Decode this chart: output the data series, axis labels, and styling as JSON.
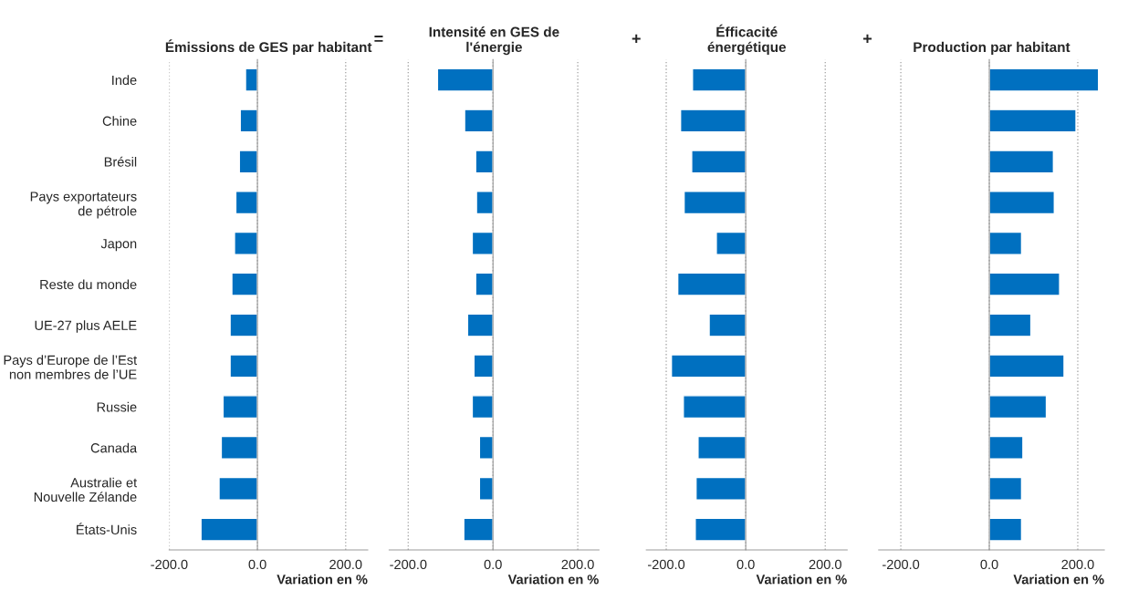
{
  "chart_data": [
    {
      "type": "bar",
      "orientation": "horizontal",
      "title": "Émissions de GES par habitant",
      "xlabel": "Variation en %",
      "categories": [
        "Inde",
        "Chine",
        "Brésil",
        "Pays exportateurs\nde pétrole",
        "Japon",
        "Reste du monde",
        "UE-27 plus AELE",
        "Pays d’Europe de l’Est\nnon membres de l’UE",
        "Russie",
        "Canada",
        "Australie et\nNouvelle Zélande",
        "États-Unis"
      ],
      "series": [
        {
          "color": "#0070c0",
          "values": [
            -27,
            -39,
            -41,
            -49,
            -52,
            -58,
            -62,
            -62,
            -78,
            -82,
            -87,
            -128
          ]
        }
      ],
      "xlim": [
        -200,
        250
      ],
      "xticks": [
        {
          "value": -200,
          "label": "-200.0"
        },
        {
          "value": 0,
          "label": "0.0"
        },
        {
          "value": 200,
          "label": "200.0"
        }
      ],
      "grid": "x"
    },
    {
      "type": "bar",
      "orientation": "horizontal",
      "title": "Intensité en GES de\nl'énergie",
      "xlabel": "Variation en %",
      "annotations": [
        "="
      ],
      "series": [
        {
          "color": "#0070c0",
          "values": [
            -131,
            -67,
            -41,
            -39,
            -49,
            -41,
            -60,
            -45,
            -49,
            -32,
            -32,
            -69
          ]
        }
      ],
      "xlim": [
        -245,
        250
      ],
      "xticks": [
        {
          "value": -200,
          "label": "-200.0"
        },
        {
          "value": 0,
          "label": "0.0"
        },
        {
          "value": 200,
          "label": "200.0"
        }
      ],
      "grid": "x",
      "tick_labels": "x"
    },
    {
      "type": "bar",
      "orientation": "horizontal",
      "title": "Éfficacité\nénergétique",
      "xlabel": "Variation en %",
      "annotations": [
        "+"
      ],
      "series": [
        {
          "color": "#0070c0",
          "values": [
            -134,
            -164,
            -136,
            -155,
            -74,
            -171,
            -92,
            -187,
            -157,
            -120,
            -125,
            -127
          ]
        }
      ],
      "xlim": [
        -250,
        255
      ],
      "xticks": [
        {
          "value": -200,
          "label": "-200.0"
        },
        {
          "value": 0,
          "label": "0.0"
        },
        {
          "value": 200,
          "label": "200.0"
        }
      ],
      "grid": "x",
      "tick_labels": "x"
    },
    {
      "type": "bar",
      "orientation": "horizontal",
      "title": "Production par habitant",
      "xlabel": "Variation en %",
      "annotations": [
        "+"
      ],
      "series": [
        {
          "color": "#0070c0",
          "values": [
            247,
            196,
            145,
            147,
            73,
            159,
            94,
            169,
            129,
            76,
            73,
            73
          ]
        }
      ],
      "xlim": [
        -250,
        260
      ],
      "xticks": [
        {
          "value": -200,
          "label": "-200.0"
        },
        {
          "value": 0,
          "label": "0.0"
        },
        {
          "value": 200,
          "label": "200.0"
        }
      ],
      "grid": "x",
      "tick_labels": "x"
    }
  ]
}
